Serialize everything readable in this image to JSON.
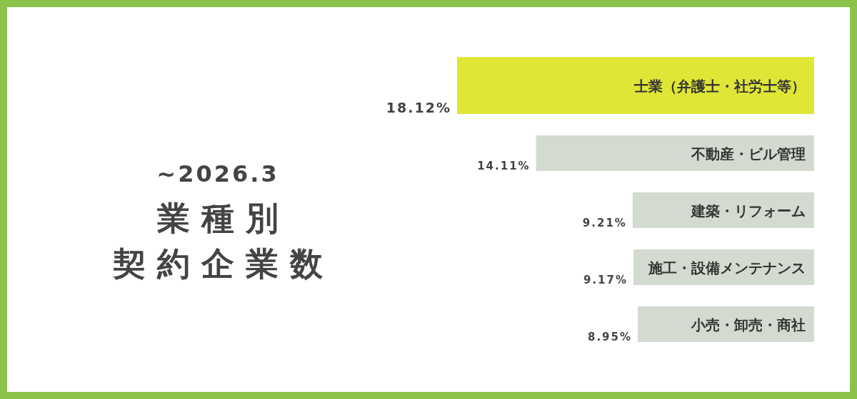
{
  "chart_data": {
    "type": "bar",
    "orientation": "horizontal",
    "subtitle": "~2026.3",
    "title": "業種別契約企業数",
    "categories": [
      "士業（弁護士・社労士等）",
      "不動産・ビル管理",
      "建築・リフォーム",
      "施工・設備メンテナンス",
      "小売・卸売・商社"
    ],
    "values": [
      18.12,
      14.11,
      9.21,
      9.17,
      8.95
    ],
    "value_labels": [
      "18.12%",
      "14.11%",
      "9.21%",
      "9.17%",
      "8.95%"
    ],
    "colors": [
      "#dfe635",
      "#d3dacf",
      "#d3dacf",
      "#d3dacf",
      "#d3dacf"
    ]
  }
}
